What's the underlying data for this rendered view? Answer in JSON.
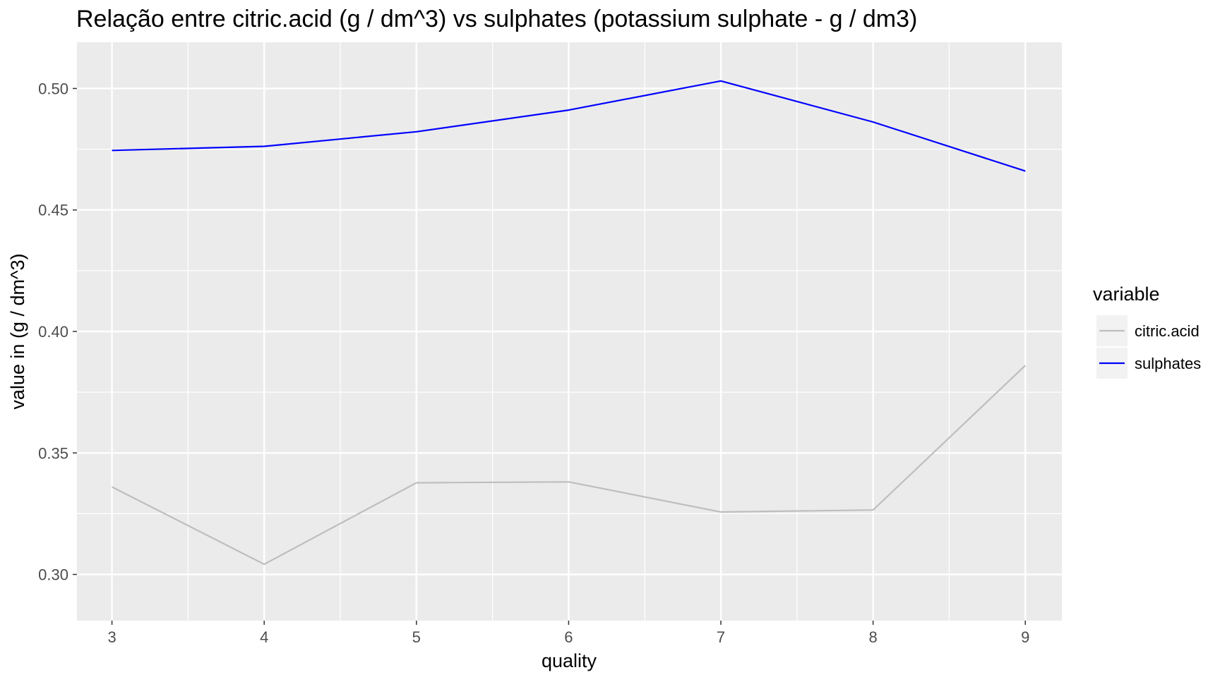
{
  "chart_data": {
    "type": "line",
    "title": "Relação entre citric.acid (g / dm^3) vs sulphates (potassium sulphate - g / dm3)",
    "xlabel": "quality",
    "ylabel": "value in (g / dm^3)",
    "x": [
      3,
      4,
      5,
      6,
      7,
      8,
      9
    ],
    "x_tick_labels": [
      "3",
      "4",
      "5",
      "6",
      "7",
      "8",
      "9"
    ],
    "xlim": [
      2.77,
      9.24
    ],
    "ylim": [
      0.281,
      0.519
    ],
    "y_ticks": [
      0.3,
      0.35,
      0.4,
      0.45,
      0.5
    ],
    "y_tick_labels": [
      "0.30",
      "0.35",
      "0.40",
      "0.45",
      "0.50"
    ],
    "grid": true,
    "legend": {
      "title": "variable",
      "placement": "right"
    },
    "series": [
      {
        "name": "citric.acid",
        "color": "#bebebe",
        "values": [
          0.336,
          0.3042,
          0.3377,
          0.3381,
          0.3257,
          0.3265,
          0.386
        ]
      },
      {
        "name": "sulphates",
        "color": "#0000ff",
        "values": [
          0.4745,
          0.4762,
          0.4822,
          0.4911,
          0.5031,
          0.4862,
          0.466
        ]
      }
    ]
  }
}
